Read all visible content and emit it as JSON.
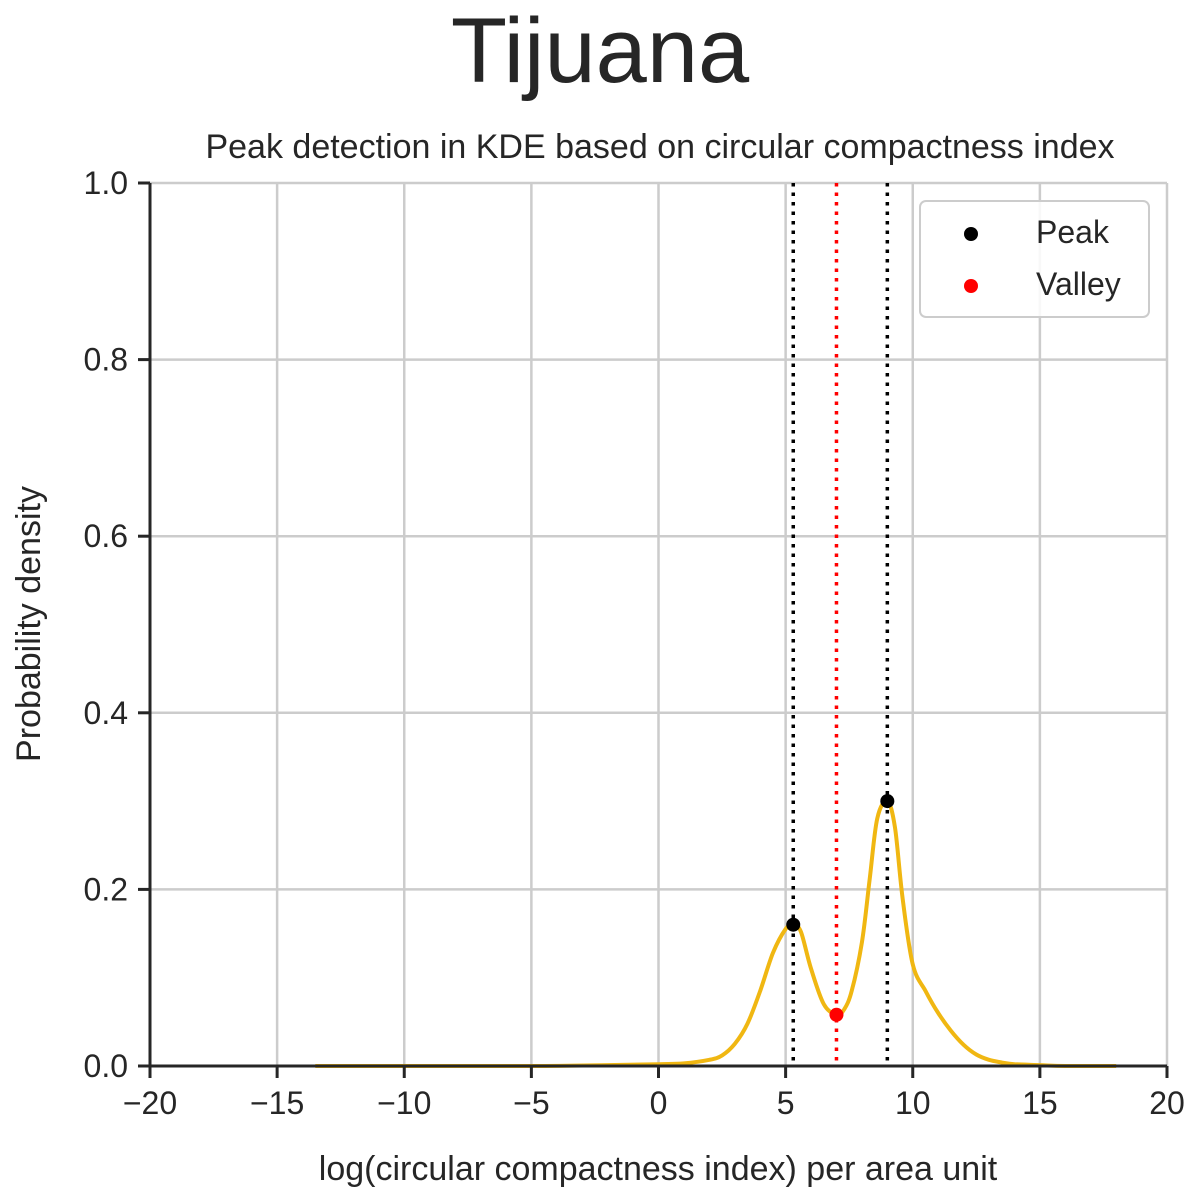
{
  "figure": {
    "suptitle": "Tijuana"
  },
  "chart_data": {
    "type": "line",
    "title": "Peak detection in KDE based on circular compactness index",
    "xlabel": "log(circular compactness index) per area unit",
    "ylabel": "Probability density",
    "xlim": [
      -20,
      20
    ],
    "ylim": [
      0,
      1.0
    ],
    "xticks": [
      -20,
      -15,
      -10,
      -5,
      0,
      5,
      10,
      15,
      20
    ],
    "xtick_labels": [
      "−20",
      "−15",
      "−10",
      "−5",
      "0",
      "5",
      "10",
      "15",
      "20"
    ],
    "yticks": [
      0,
      0.2,
      0.4,
      0.6,
      0.8,
      1.0
    ],
    "ytick_labels": [
      "0.0",
      "0.2",
      "0.4",
      "0.6",
      "0.8",
      "1.0"
    ],
    "grid": true,
    "legend_position": "top-right",
    "series": [
      {
        "kind": "kde-curve",
        "color": "#f0b712",
        "x": [
          -13.5,
          -10,
          -5,
          -2,
          0,
          1,
          2,
          2.5,
          3,
          3.5,
          4,
          4.5,
          5,
          5.3,
          5.6,
          6,
          6.5,
          7,
          7.3,
          7.6,
          8,
          8.3,
          8.6,
          9,
          9.3,
          9.6,
          10,
          10.5,
          11,
          11.5,
          12,
          12.5,
          13,
          13.5,
          14,
          15,
          16,
          18
        ],
        "y": [
          0.0,
          0.0,
          0.0,
          0.001,
          0.002,
          0.003,
          0.007,
          0.012,
          0.025,
          0.048,
          0.085,
          0.128,
          0.155,
          0.16,
          0.152,
          0.11,
          0.07,
          0.058,
          0.064,
          0.085,
          0.14,
          0.21,
          0.28,
          0.3,
          0.27,
          0.19,
          0.115,
          0.085,
          0.06,
          0.04,
          0.024,
          0.013,
          0.007,
          0.004,
          0.002,
          0.001,
          0.0,
          0.0
        ]
      },
      {
        "name": "Peak",
        "kind": "scatter",
        "color": "#000000",
        "x": [
          5.3,
          9.0
        ],
        "y": [
          0.16,
          0.3
        ]
      },
      {
        "name": "Valley",
        "kind": "scatter",
        "color": "#ff0000",
        "x": [
          7.0
        ],
        "y": [
          0.058
        ]
      }
    ],
    "vlines": [
      {
        "x": 5.3,
        "color": "#000000",
        "style": "dotted"
      },
      {
        "x": 7.0,
        "color": "#ff0000",
        "style": "dotted"
      },
      {
        "x": 9.0,
        "color": "#000000",
        "style": "dotted"
      }
    ]
  }
}
